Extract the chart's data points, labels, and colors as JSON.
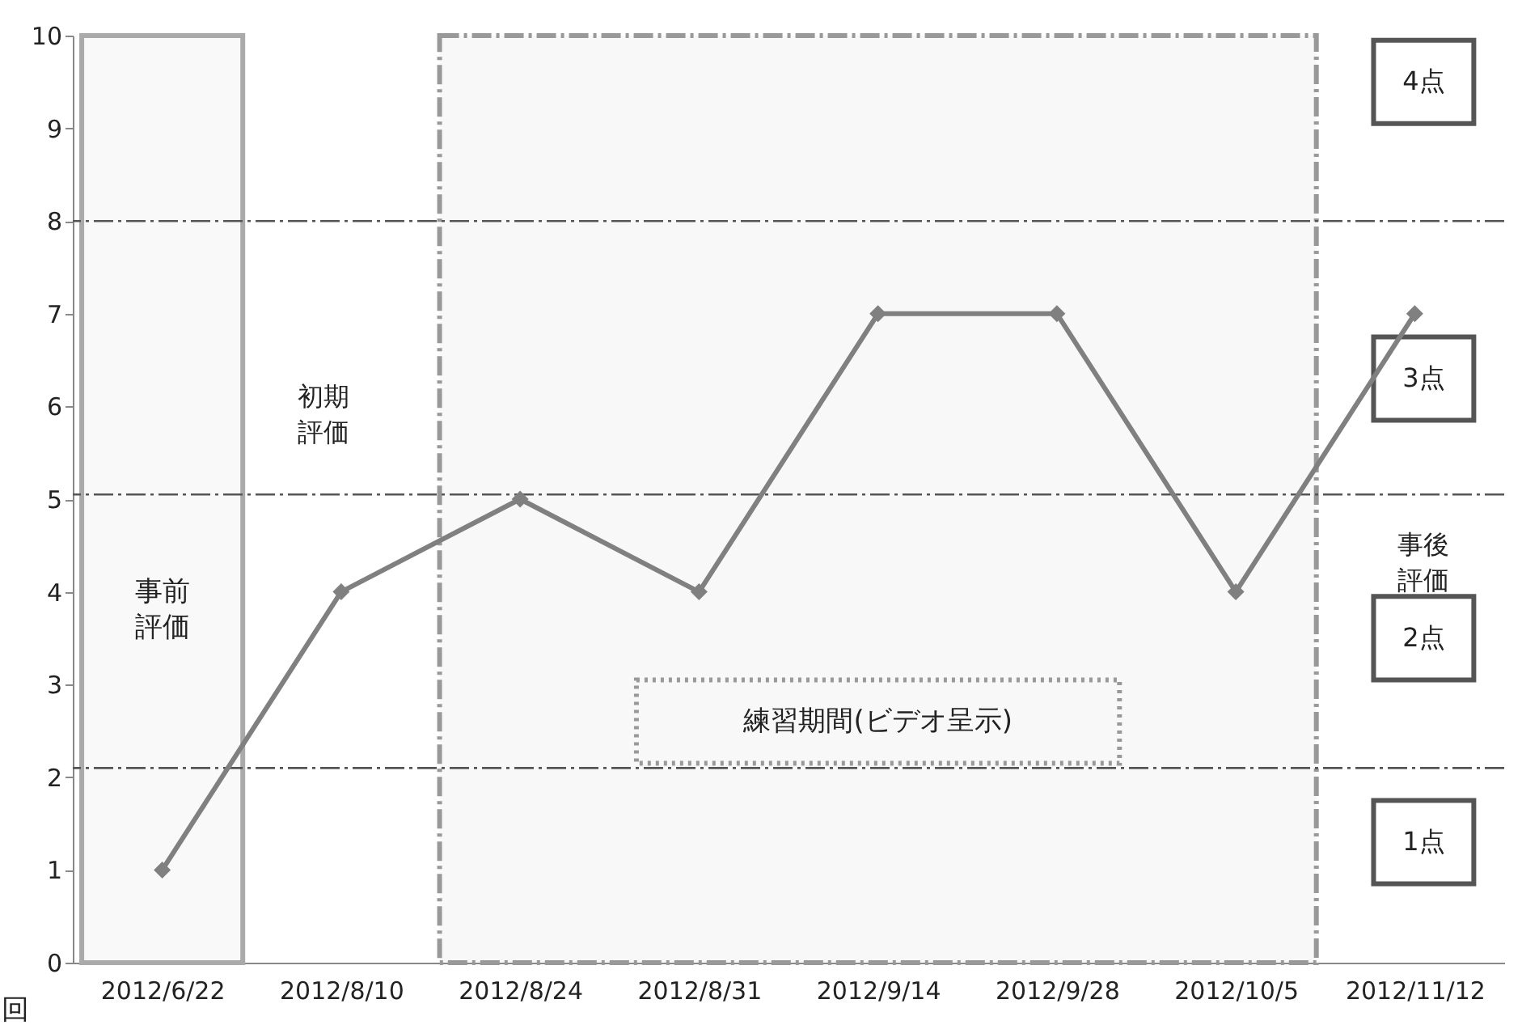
{
  "chart_data": {
    "type": "line",
    "categories": [
      "2012/6/22",
      "2012/8/10",
      "2012/8/24",
      "2012/8/31",
      "2012/9/14",
      "2012/9/28",
      "2012/10/5",
      "2012/11/12"
    ],
    "series": [
      {
        "color": "#808080",
        "values": [
          1,
          4,
          5,
          4,
          7,
          7,
          4,
          7
        ]
      }
    ],
    "ylabel": "回",
    "ylim": [
      0,
      10
    ],
    "yticks": [
      0,
      1,
      2,
      3,
      4,
      5,
      6,
      7,
      8,
      9,
      10
    ],
    "marker": "diamond",
    "line_style": "solid",
    "ref_lines": [
      {
        "axis": "y",
        "value": 2.1,
        "color": "#555555",
        "line_style": "dashed"
      },
      {
        "axis": "y",
        "value": 5.05,
        "color": "#555555",
        "line_style": "dashed"
      },
      {
        "axis": "y",
        "value": 8,
        "color": "#555555",
        "line_style": "dashed"
      }
    ],
    "bands": [
      {
        "axis": "x",
        "from": "2012/6/22",
        "to": "2012/6/22",
        "label": "事前評価",
        "color": "#aaaaaa"
      },
      {
        "axis": "x",
        "from": "2012/8/24",
        "to": "2012/10/5",
        "label": "練習期間(ビデオ呈示)",
        "color": "#999999"
      }
    ],
    "annotations": [
      "初期評価",
      "事後評価",
      "1点",
      "2点",
      "3点",
      "4点"
    ]
  }
}
